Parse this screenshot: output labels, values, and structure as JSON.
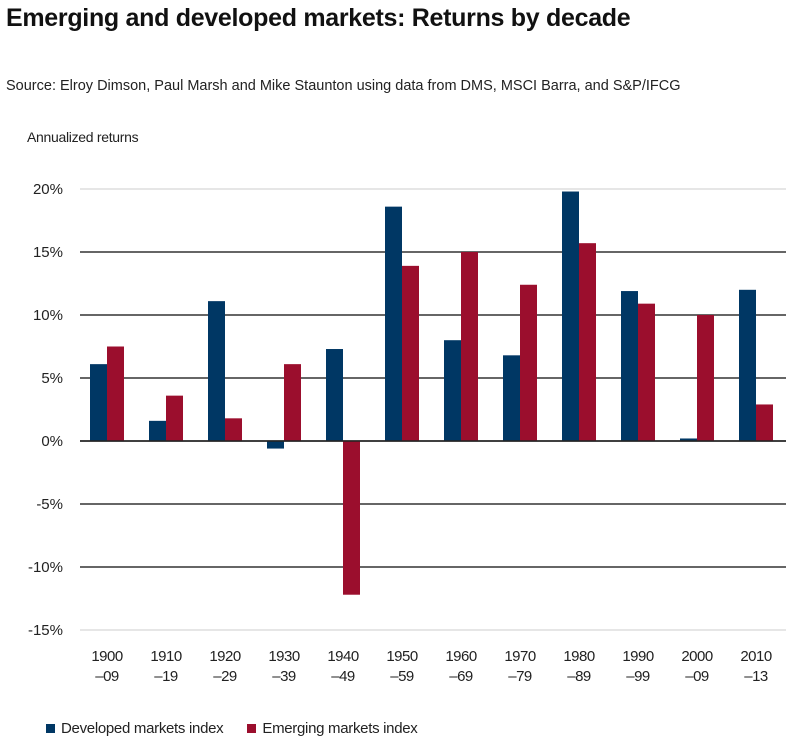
{
  "chart_data": {
    "type": "bar",
    "title": "Emerging and developed markets: Returns by decade",
    "subtitle": "Source: Elroy Dimson, Paul Marsh and Mike Staunton using data from DMS, MSCI Barra, and S&P/IFCG",
    "xlabel": "",
    "ylabel": "Annualized returns",
    "ylim": [
      -15,
      20
    ],
    "yticks": [
      20,
      15,
      10,
      5,
      0,
      -5,
      -10,
      -15
    ],
    "ytick_labels": [
      "20%",
      "15%",
      "10%",
      "5%",
      "0%",
      "-5%",
      "-10%",
      "-15%"
    ],
    "grid": true,
    "legend_position": "bottom-left",
    "categories": [
      {
        "line1": "1900",
        "line2": "–09"
      },
      {
        "line1": "1910",
        "line2": "–19"
      },
      {
        "line1": "1920",
        "line2": "–29"
      },
      {
        "line1": "1930",
        "line2": "–39"
      },
      {
        "line1": "1940",
        "line2": "–49"
      },
      {
        "line1": "1950",
        "line2": "–59"
      },
      {
        "line1": "1960",
        "line2": "–69"
      },
      {
        "line1": "1970",
        "line2": "–79"
      },
      {
        "line1": "1980",
        "line2": "–89"
      },
      {
        "line1": "1990",
        "line2": "–99"
      },
      {
        "line1": "2000",
        "line2": "–09"
      },
      {
        "line1": "2010",
        "line2": "–13"
      }
    ],
    "series": [
      {
        "name": "Developed markets index",
        "color": "#003764",
        "values": [
          6.1,
          1.6,
          11.1,
          -0.6,
          7.3,
          18.6,
          8.0,
          6.8,
          19.8,
          11.9,
          0.2,
          12.0
        ]
      },
      {
        "name": "Emerging markets index",
        "color": "#9b0e2d",
        "values": [
          7.5,
          3.6,
          1.8,
          6.1,
          -12.2,
          13.9,
          15.0,
          12.4,
          15.7,
          10.9,
          10.0,
          2.9
        ]
      }
    ]
  }
}
